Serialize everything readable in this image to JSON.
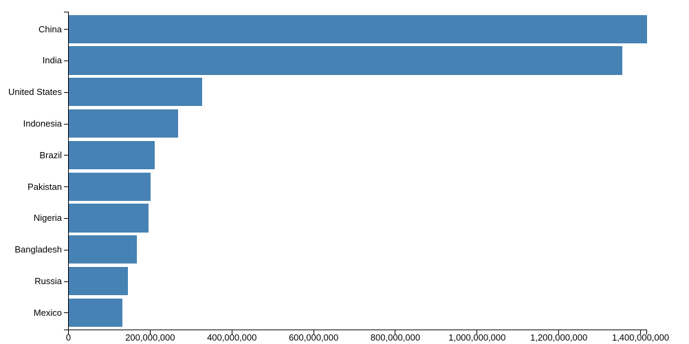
{
  "chart_data": {
    "type": "bar",
    "orientation": "horizontal",
    "title": "",
    "categories": [
      "China",
      "India",
      "United States",
      "Indonesia",
      "Brazil",
      "Pakistan",
      "Nigeria",
      "Bangladesh",
      "Russia",
      "Mexico"
    ],
    "values": [
      1415045928,
      1354051854,
      326766748,
      266794980,
      210867954,
      200813818,
      195875237,
      166368149,
      143964709,
      130759074
    ],
    "xlabel": "",
    "ylabel": "",
    "xlim": [
      0,
      1415045928
    ],
    "x_ticks": [
      0,
      200000000,
      400000000,
      600000000,
      800000000,
      1000000000,
      1200000000,
      1400000000
    ],
    "x_tick_labels": [
      "0",
      "200,000,000",
      "400,000,000",
      "600,000,000",
      "800,000,000",
      "1,000,000,000",
      "1,200,000,000",
      "1,400,000,000"
    ],
    "grid": false,
    "legend": "none",
    "bar_color": "#4682b4",
    "axis_color": "#000000",
    "text_color": "#000000"
  }
}
